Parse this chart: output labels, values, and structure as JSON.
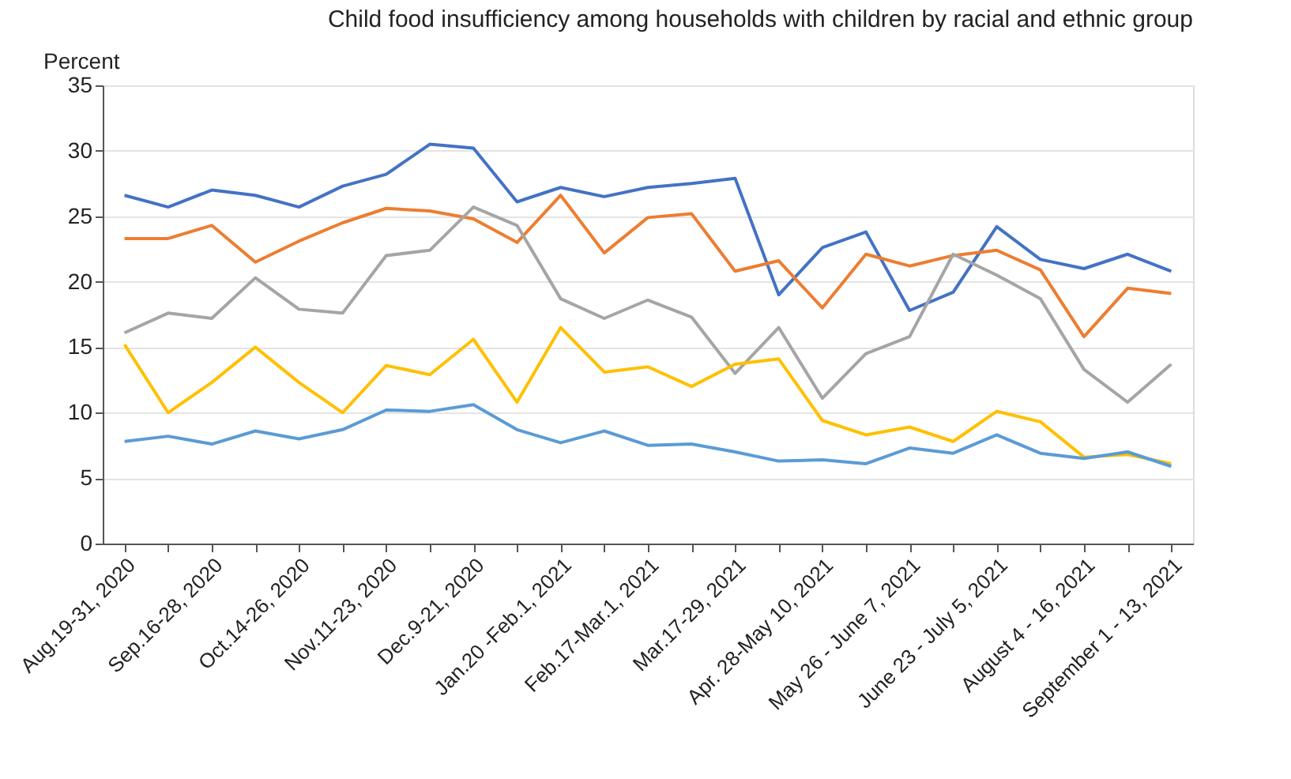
{
  "chart_data": {
    "type": "line",
    "title": "Child food insufficiency among households with children by racial and ethnic group",
    "ylabel": "Percent",
    "categories": [
      "Aug.19-31, 2020",
      null,
      "Sep.16-28, 2020",
      null,
      "Oct.14-26, 2020",
      null,
      "Nov.11-23, 2020",
      null,
      "Dec.9-21, 2020",
      null,
      "Jan.20 -Feb.1, 2021",
      null,
      "Feb.17-Mar.1, 2021",
      null,
      "Mar.17-29, 2021",
      null,
      "Apr. 28-May 10, 2021",
      null,
      "May 26 - June 7, 2021",
      null,
      "June 23 - July 5, 2021",
      null,
      "August 4 - 16, 2021",
      null,
      "September 1 - 13, 2021"
    ],
    "series": [
      {
        "color": "#4472c4",
        "values": [
          26.6,
          25.7,
          27.0,
          26.6,
          25.7,
          27.3,
          28.2,
          30.5,
          30.2,
          26.1,
          27.2,
          26.5,
          27.2,
          27.5,
          27.9,
          19.0,
          22.6,
          23.8,
          17.8,
          19.2,
          24.2,
          21.7,
          21.0,
          22.1,
          20.8
        ]
      },
      {
        "color": "#ed7d31",
        "values": [
          23.3,
          23.3,
          24.3,
          21.5,
          23.1,
          24.5,
          25.6,
          25.4,
          24.8,
          23.0,
          26.6,
          22.2,
          24.9,
          25.2,
          20.8,
          21.6,
          18.0,
          22.1,
          21.2,
          22.0,
          22.4,
          20.9,
          15.8,
          19.5,
          19.1
        ]
      },
      {
        "color": "#a5a5a5",
        "values": [
          16.1,
          17.6,
          17.2,
          20.3,
          17.9,
          17.6,
          22.0,
          22.4,
          25.7,
          24.3,
          18.7,
          17.2,
          18.6,
          17.3,
          13.0,
          16.5,
          11.1,
          14.5,
          15.8,
          22.1,
          20.5,
          18.7,
          13.3,
          10.8,
          13.7
        ]
      },
      {
        "color": "#ffc000",
        "values": [
          15.2,
          10.0,
          12.3,
          15.0,
          12.3,
          10.0,
          13.6,
          12.9,
          15.6,
          10.8,
          16.5,
          13.1,
          13.5,
          12.0,
          13.7,
          14.1,
          9.4,
          8.3,
          8.9,
          7.8,
          10.1,
          9.3,
          6.6,
          6.8,
          6.1
        ]
      },
      {
        "color": "#5b9bd5",
        "values": [
          7.8,
          8.2,
          7.6,
          8.6,
          8.0,
          8.7,
          10.2,
          10.1,
          10.6,
          8.7,
          7.7,
          8.6,
          7.5,
          7.6,
          7.0,
          6.3,
          6.4,
          6.1,
          7.3,
          6.9,
          8.3,
          6.9,
          6.5,
          7.0,
          5.9
        ]
      }
    ],
    "ylim": [
      0,
      35
    ],
    "yticks": [
      0,
      5,
      10,
      15,
      20,
      25,
      30,
      35
    ],
    "grid": "y",
    "legend": false,
    "marker": "none",
    "line_style": "solid"
  }
}
